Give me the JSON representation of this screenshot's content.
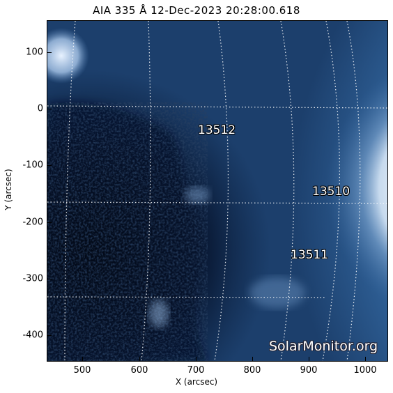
{
  "title": "AIA 335 Å 12-Dec-2023 20:28:00.618",
  "axes": {
    "xlabel": "X (arcsec)",
    "ylabel": "Y (arcsec)",
    "xticks": [
      "500",
      "600",
      "700",
      "800",
      "900",
      "1000"
    ],
    "yticks": [
      "100",
      "0",
      "-100",
      "-200",
      "-300",
      "-400"
    ]
  },
  "regions": [
    {
      "id": "13512",
      "label": "13512"
    },
    {
      "id": "13510",
      "label": "13510"
    },
    {
      "id": "13511",
      "label": "13511"
    }
  ],
  "watermark": "SolarMonitor.org",
  "colors": {
    "dark_corona": "#0b1a33",
    "disk_mid": "#2d5d93",
    "limb_bright": "#d6e4f2",
    "grid": "#ffffff"
  }
}
